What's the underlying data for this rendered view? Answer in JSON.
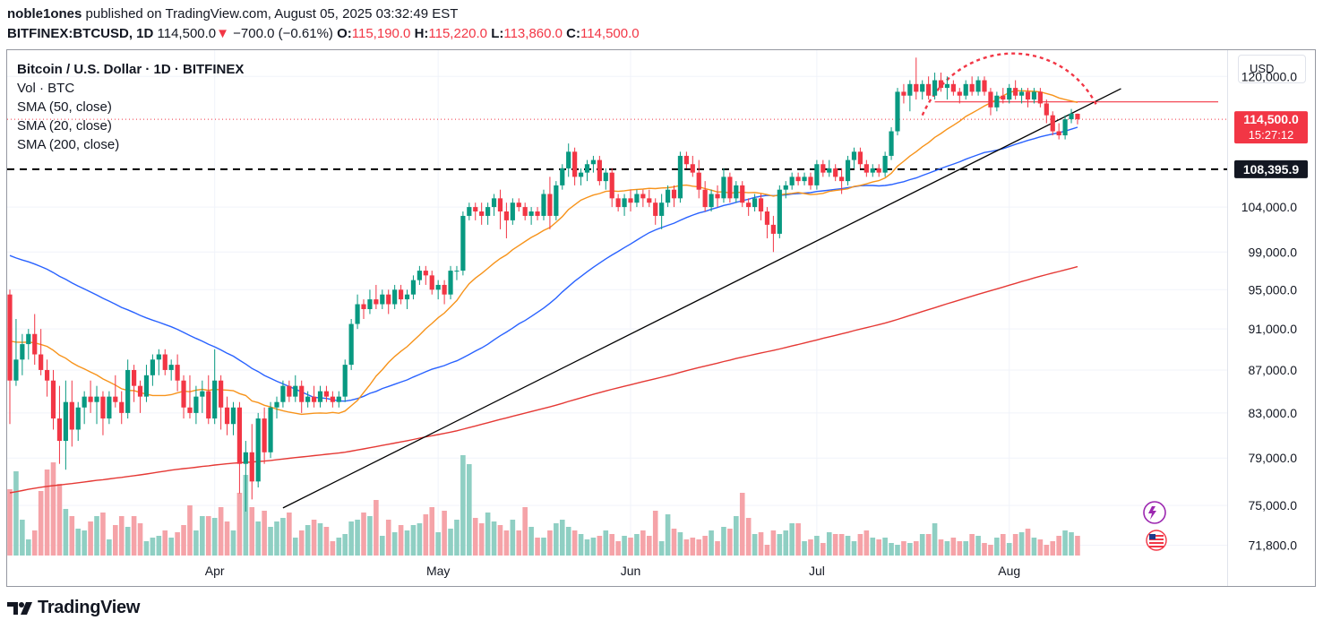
{
  "header": {
    "author": "noble1ones",
    "published_text": "published on TradingView.com, August 05, 2025 03:32:49 EST",
    "symbol": "BITFINEX:BTCUSD, 1D",
    "last": "114,500.0",
    "change_arrow": "▼",
    "change": "−700.0 (−0.61%)",
    "o_label": "O:",
    "o_value": "115,190.0",
    "h_label": "H:",
    "h_value": "115,220.0",
    "l_label": "L:",
    "l_value": "113,860.0",
    "c_label": "C:",
    "c_value": "114,500.0"
  },
  "legend": {
    "title": "Bitcoin / U.S. Dollar · 1D · BITFINEX",
    "vol": "Vol · BTC",
    "sma50": "SMA (50, close)",
    "sma20": "SMA (20, close)",
    "sma200": "SMA (200, close)"
  },
  "currency_button": "USD",
  "branding": "TradingView",
  "icons": [
    "tradingview-logo-icon",
    "sparkle-icon",
    "us-flag-icon"
  ],
  "colors": {
    "up": "#089981",
    "down": "#f23645",
    "vol_up": "#8fcfc3",
    "vol_down": "#f5a3a8",
    "sma50": "#2962ff",
    "sma20": "#f7931a",
    "sma200": "#e53935",
    "trend": "#000000",
    "arc": "#f23645"
  },
  "chart_data": {
    "type": "candlestick",
    "interval": "1D",
    "x_labels": [
      "Apr",
      "May",
      "Jun",
      "Jul",
      "Aug"
    ],
    "y_axis_ticks": [
      "120,000.0",
      "104,000.0",
      "99,000.0",
      "95,000.0",
      "91,000.0",
      "87,000.0",
      "83,000.0",
      "79,000.0",
      "75,000.0",
      "71,800.0"
    ],
    "scale": "log",
    "y_range": [
      71000,
      123500
    ],
    "last_price_label": "114,500.0",
    "countdown": "15:27:12",
    "level_label": "108,395.9",
    "level": 108395.9,
    "resistance_level": 116700,
    "last_price": 114500,
    "ohlc": [
      [
        94500,
        95000,
        82000,
        86000
      ],
      [
        86000,
        92000,
        85500,
        88000
      ],
      [
        88000,
        90500,
        86500,
        89500
      ],
      [
        89500,
        91000,
        88000,
        90500
      ],
      [
        90500,
        92500,
        87500,
        88500
      ],
      [
        88500,
        91000,
        86500,
        87000
      ],
      [
        87000,
        88000,
        84500,
        86000
      ],
      [
        86000,
        87000,
        81500,
        82500
      ],
      [
        82500,
        85500,
        78500,
        80500
      ],
      [
        80500,
        86000,
        78000,
        84000
      ],
      [
        84000,
        86000,
        80000,
        81500
      ],
      [
        81500,
        84000,
        80500,
        83500
      ],
      [
        83500,
        85000,
        82000,
        84500
      ],
      [
        84500,
        86000,
        83000,
        84000
      ],
      [
        84000,
        85500,
        82000,
        84500
      ],
      [
        84500,
        85000,
        81000,
        82500
      ],
      [
        82500,
        85000,
        82000,
        84500
      ],
      [
        84500,
        86500,
        83500,
        84000
      ],
      [
        84000,
        85000,
        82000,
        83000
      ],
      [
        83000,
        88000,
        82500,
        87000
      ],
      [
        87000,
        87500,
        84000,
        85500
      ],
      [
        85500,
        86000,
        83000,
        84500
      ],
      [
        84500,
        87500,
        84000,
        86500
      ],
      [
        86500,
        88500,
        85500,
        88000
      ],
      [
        88000,
        89000,
        86500,
        88500
      ],
      [
        88500,
        89000,
        86500,
        87000
      ],
      [
        87000,
        88000,
        86000,
        87500
      ],
      [
        87500,
        88500,
        85000,
        86000
      ],
      [
        86000,
        86500,
        82500,
        83500
      ],
      [
        83500,
        86500,
        82500,
        83000
      ],
      [
        83000,
        85500,
        82000,
        84500
      ],
      [
        84500,
        86000,
        83000,
        85000
      ],
      [
        85000,
        86500,
        82000,
        82500
      ],
      [
        82500,
        89000,
        82000,
        86000
      ],
      [
        86000,
        86500,
        81500,
        83500
      ],
      [
        83500,
        84500,
        81000,
        82000
      ],
      [
        82000,
        84000,
        81000,
        83500
      ],
      [
        83500,
        84000,
        76000,
        78500
      ],
      [
        78500,
        80500,
        74500,
        79500
      ],
      [
        79500,
        82000,
        75500,
        77000
      ],
      [
        77000,
        83000,
        76500,
        82500
      ],
      [
        82500,
        83500,
        78500,
        79500
      ],
      [
        79500,
        84000,
        79000,
        83500
      ],
      [
        83500,
        84500,
        82500,
        84000
      ],
      [
        84000,
        86000,
        83500,
        85500
      ],
      [
        85500,
        86000,
        84000,
        84500
      ],
      [
        84500,
        86500,
        84000,
        85500
      ],
      [
        85500,
        86000,
        83000,
        84000
      ],
      [
        84000,
        85000,
        83500,
        84500
      ],
      [
        84500,
        85500,
        83500,
        84000
      ],
      [
        84000,
        85500,
        83500,
        85000
      ],
      [
        85000,
        85500,
        84000,
        84500
      ],
      [
        84500,
        85000,
        83500,
        84000
      ],
      [
        84000,
        85000,
        83500,
        84500
      ],
      [
        84500,
        88000,
        84000,
        87500
      ],
      [
        87500,
        92000,
        87000,
        91500
      ],
      [
        91500,
        94500,
        91000,
        93500
      ],
      [
        93500,
        94000,
        92000,
        93000
      ],
      [
        93000,
        95000,
        92500,
        94000
      ],
      [
        94000,
        95500,
        93000,
        93500
      ],
      [
        93500,
        95000,
        93000,
        94500
      ],
      [
        94500,
        95000,
        92500,
        93500
      ],
      [
        93500,
        95500,
        93000,
        95000
      ],
      [
        95000,
        95500,
        93500,
        94000
      ],
      [
        94000,
        95000,
        93000,
        94500
      ],
      [
        94500,
        96500,
        94000,
        96000
      ],
      [
        96000,
        97500,
        95500,
        97000
      ],
      [
        97000,
        97500,
        95500,
        96500
      ],
      [
        96500,
        97000,
        94500,
        95000
      ],
      [
        95000,
        96000,
        94000,
        95500
      ],
      [
        95500,
        96000,
        93500,
        94500
      ],
      [
        94500,
        97500,
        94000,
        97000
      ],
      [
        97000,
        97500,
        96000,
        97000
      ],
      [
        97000,
        103500,
        96500,
        103000
      ],
      [
        103000,
        104500,
        102500,
        104000
      ],
      [
        104000,
        104500,
        102500,
        103500
      ],
      [
        103500,
        104500,
        102000,
        103000
      ],
      [
        103000,
        104500,
        102000,
        104000
      ],
      [
        104000,
        105500,
        103000,
        105000
      ],
      [
        105000,
        106000,
        101500,
        103500
      ],
      [
        103500,
        104500,
        100500,
        102500
      ],
      [
        102500,
        105000,
        102000,
        104500
      ],
      [
        104500,
        105000,
        103500,
        104000
      ],
      [
        104000,
        104500,
        102500,
        103000
      ],
      [
        103000,
        104000,
        102000,
        103500
      ],
      [
        103500,
        104000,
        102500,
        103000
      ],
      [
        103000,
        106000,
        102500,
        105500
      ],
      [
        105500,
        107500,
        101500,
        103000
      ],
      [
        103000,
        107000,
        102500,
        106500
      ],
      [
        106500,
        109000,
        106000,
        108500
      ],
      [
        108500,
        111500,
        107500,
        110500
      ],
      [
        110500,
        111000,
        106500,
        107500
      ],
      [
        107500,
        108500,
        106500,
        108000
      ],
      [
        108000,
        109500,
        107000,
        109000
      ],
      [
        109000,
        110000,
        108000,
        109500
      ],
      [
        109500,
        110000,
        106500,
        107000
      ],
      [
        107000,
        108500,
        106000,
        108000
      ],
      [
        108000,
        108500,
        104000,
        105000
      ],
      [
        105000,
        105500,
        103500,
        104000
      ],
      [
        104000,
        105500,
        103000,
        105000
      ],
      [
        105000,
        106000,
        103500,
        104500
      ],
      [
        104500,
        106000,
        104000,
        105500
      ],
      [
        105500,
        106000,
        104000,
        105000
      ],
      [
        105000,
        106000,
        104000,
        104500
      ],
      [
        104500,
        105000,
        102000,
        103000
      ],
      [
        103000,
        105500,
        101500,
        104500
      ],
      [
        104500,
        106500,
        104000,
        106000
      ],
      [
        106000,
        106500,
        104000,
        105000
      ],
      [
        105000,
        110500,
        104500,
        110000
      ],
      [
        110000,
        110500,
        108500,
        109000
      ],
      [
        109000,
        110000,
        107500,
        108000
      ],
      [
        108000,
        109500,
        105000,
        106000
      ],
      [
        106000,
        107000,
        103500,
        104000
      ],
      [
        104000,
        106000,
        103500,
        105500
      ],
      [
        105500,
        106500,
        104000,
        105000
      ],
      [
        105000,
        108500,
        104500,
        107500
      ],
      [
        107500,
        108000,
        104500,
        105000
      ],
      [
        105000,
        107000,
        104500,
        106500
      ],
      [
        106500,
        107000,
        104000,
        104500
      ],
      [
        104500,
        105000,
        103000,
        104000
      ],
      [
        104000,
        105500,
        103500,
        105000
      ],
      [
        105000,
        105500,
        102500,
        103500
      ],
      [
        103500,
        104000,
        100500,
        102000
      ],
      [
        102000,
        103000,
        99000,
        101000
      ],
      [
        101000,
        106500,
        100500,
        106000
      ],
      [
        106000,
        107000,
        105000,
        106500
      ],
      [
        106500,
        108000,
        106000,
        107500
      ],
      [
        107500,
        108000,
        106500,
        107000
      ],
      [
        107000,
        108000,
        106500,
        107500
      ],
      [
        107500,
        108000,
        106000,
        106500
      ],
      [
        106500,
        109500,
        106000,
        109000
      ],
      [
        109000,
        109500,
        107500,
        108000
      ],
      [
        108000,
        109500,
        107500,
        108500
      ],
      [
        108500,
        109000,
        107000,
        107500
      ],
      [
        107500,
        108500,
        105500,
        107000
      ],
      [
        107000,
        110000,
        106500,
        109500
      ],
      [
        109500,
        111000,
        108500,
        110500
      ],
      [
        110500,
        111000,
        108500,
        109000
      ],
      [
        109000,
        109500,
        107500,
        108000
      ],
      [
        108000,
        109000,
        107500,
        108500
      ],
      [
        108500,
        109000,
        107500,
        108000
      ],
      [
        108000,
        110500,
        107500,
        110000
      ],
      [
        110000,
        113500,
        109500,
        113000
      ],
      [
        113000,
        118500,
        112500,
        118000
      ],
      [
        118000,
        119000,
        116500,
        117500
      ],
      [
        117500,
        119500,
        115500,
        119000
      ],
      [
        119000,
        122500,
        117000,
        118000
      ],
      [
        118000,
        119500,
        117000,
        119000
      ],
      [
        119000,
        120000,
        117000,
        117500
      ],
      [
        117500,
        120500,
        117000,
        119500
      ],
      [
        119500,
        120500,
        118000,
        118500
      ],
      [
        118500,
        120000,
        117000,
        119000
      ],
      [
        119000,
        119500,
        117500,
        118000
      ],
      [
        118000,
        118500,
        116500,
        117500
      ],
      [
        117500,
        119500,
        117000,
        119000
      ],
      [
        119000,
        120000,
        117500,
        118000
      ],
      [
        118000,
        120000,
        117500,
        119500
      ],
      [
        119500,
        120000,
        117500,
        118000
      ],
      [
        118000,
        118500,
        115000,
        116000
      ],
      [
        116000,
        118000,
        115500,
        117500
      ],
      [
        117500,
        118500,
        116500,
        117000
      ],
      [
        117000,
        119000,
        116500,
        118500
      ],
      [
        118500,
        119500,
        117000,
        117500
      ],
      [
        117500,
        118500,
        116500,
        118000
      ],
      [
        118000,
        118500,
        116000,
        117000
      ],
      [
        117000,
        118500,
        116500,
        118000
      ],
      [
        118000,
        118500,
        116000,
        116500
      ],
      [
        116500,
        117000,
        114000,
        115000
      ],
      [
        115000,
        115500,
        112500,
        113000
      ],
      [
        113000,
        114000,
        112000,
        112500
      ],
      [
        112500,
        115000,
        112000,
        114500
      ],
      [
        114500,
        115800,
        114000,
        115200
      ],
      [
        115190,
        115220,
        113860,
        114500
      ]
    ],
    "volumes": [
      37,
      47,
      20,
      9,
      14,
      36,
      48,
      52,
      40,
      26,
      22,
      15,
      14,
      19,
      22,
      24,
      9,
      17,
      22,
      16,
      22,
      18,
      8,
      10,
      11,
      14,
      10,
      13,
      17,
      28,
      14,
      22,
      22,
      21,
      27,
      19,
      14,
      35,
      45,
      27,
      19,
      25,
      16,
      19,
      21,
      24,
      10,
      14,
      17,
      20,
      18,
      16,
      8,
      10,
      12,
      19,
      20,
      24,
      22,
      31,
      11,
      20,
      13,
      17,
      14,
      17,
      18,
      23,
      27,
      13,
      25,
      15,
      20,
      56,
      51,
      21,
      18,
      24,
      19,
      17,
      14,
      20,
      14,
      27,
      16,
      10,
      10,
      14,
      18,
      20,
      16,
      14,
      12,
      9,
      10,
      11,
      14,
      12,
      8,
      11,
      10,
      12,
      14,
      11,
      25,
      8,
      23,
      15,
      13,
      9,
      10,
      9,
      11,
      14,
      8,
      16,
      15,
      22,
      35,
      21,
      12,
      13,
      6,
      14,
      12,
      14,
      18,
      18,
      8,
      9,
      11,
      7,
      13,
      12,
      12,
      11,
      8,
      12,
      14,
      10,
      9,
      10,
      7,
      6,
      8,
      7,
      8,
      12,
      12,
      18,
      9,
      8,
      10,
      8,
      8,
      12,
      11,
      7,
      6,
      10,
      12,
      7,
      12,
      13,
      15,
      10,
      9,
      6,
      8,
      11,
      14,
      13,
      11
    ]
  }
}
